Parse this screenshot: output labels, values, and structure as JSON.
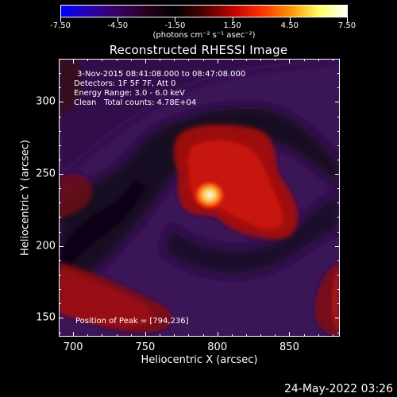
{
  "colorbar": {
    "ticks": [
      "-7.50",
      "-4.50",
      "-1.50",
      "1.50",
      "4.50",
      "7.50"
    ],
    "tick_values": [
      -7.5,
      -4.5,
      -1.5,
      1.5,
      4.5,
      7.5
    ],
    "range": [
      -7.5,
      7.5
    ],
    "units": "(photons cm⁻² s⁻¹ asec⁻²)",
    "colors": [
      "#0000ff",
      "#2a00b0",
      "#3a0060",
      "#250020",
      "#000000",
      "#500000",
      "#c00000",
      "#ff3000",
      "#ff9000",
      "#ffff60",
      "#ffffff"
    ]
  },
  "title": "Reconstructed RHESSI Image",
  "info": {
    "time_range": "3-Nov-2015 08:41:08.000 to 08:47:08.000",
    "detectors": "Detectors: 1F 5F 7F, Att 0",
    "energy_range": "Energy Range: 3.0 - 6.0 keV",
    "method": "Clean",
    "total_counts": "Total counts: 4.78E+04",
    "peak_position": "Position of Peak = [794,236]"
  },
  "axes": {
    "xlabel": "Heliocentric X (arcsec)",
    "ylabel": "Heliocentric Y (arcsec)",
    "xticks": [
      "700",
      "750",
      "800",
      "850"
    ],
    "xtick_values": [
      700,
      750,
      800,
      850
    ],
    "yticks": [
      "150",
      "200",
      "250",
      "300"
    ],
    "ytick_values": [
      150,
      200,
      250,
      300
    ],
    "xlim": [
      690,
      885
    ],
    "ylim": [
      137,
      330
    ]
  },
  "image": {
    "peak": [
      794,
      236
    ],
    "colors": {
      "background": "#3c145a",
      "dark_band": "#12061e",
      "emission": "#c80c08",
      "peak_core": "#fff2b0"
    }
  },
  "footer_date": "24-May-2022 03:26"
}
